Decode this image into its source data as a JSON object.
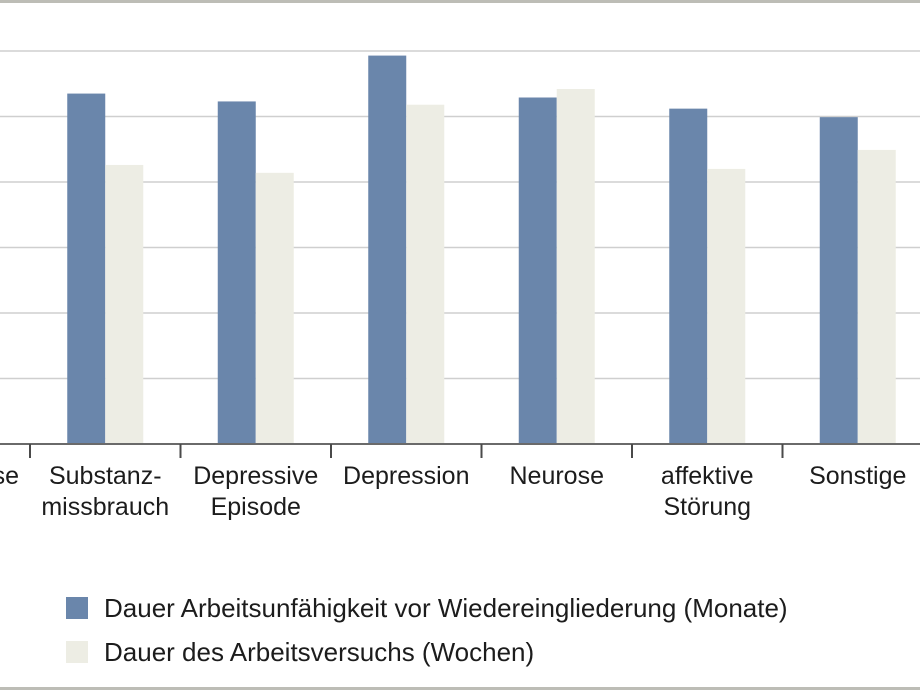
{
  "chart_data": {
    "type": "bar",
    "categories": [
      [
        "se"
      ],
      [
        "Substanz-",
        "missbrauch"
      ],
      [
        "Depressive",
        "Episode"
      ],
      [
        "Depression"
      ],
      [
        "Neurose"
      ],
      [
        "affektive",
        "Störung"
      ],
      [
        "Sonstige"
      ]
    ],
    "series": [
      {
        "name": "Dauer Arbeitsunfähigkeit vor Wiedereingliederung (Monate)",
        "color": "#6a86ab",
        "values": [
          null,
          5.35,
          5.23,
          5.93,
          5.29,
          5.12,
          4.99
        ]
      },
      {
        "name": "Dauer des Arbeitsversuchs (Wochen)",
        "color": "#ededE4",
        "values": [
          null,
          4.26,
          4.14,
          5.18,
          5.42,
          4.2,
          4.49
        ]
      }
    ],
    "ylim": [
      0,
      6
    ],
    "grid": true,
    "legend_position": "bottom-left"
  }
}
